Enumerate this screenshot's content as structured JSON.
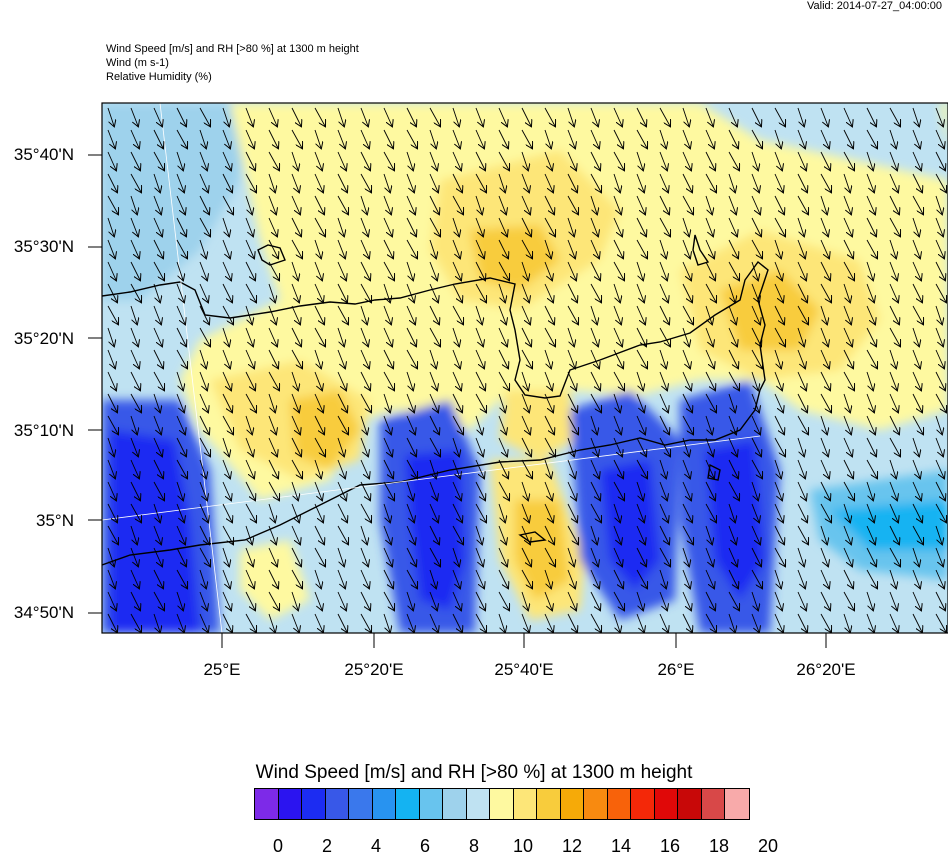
{
  "valid_time": "Valid: 2014-07-27_04:00:00",
  "header": {
    "line1": "Wind Speed [m/s] and RH [>80 %] at 1300 m height",
    "line2": "Wind   (m s-1)",
    "line3": "Relative Humidity   (%)"
  },
  "axes": {
    "y_ticks": [
      "35°40'N",
      "35°30'N",
      "35°20'N",
      "35°10'N",
      "35°N",
      "34°50'N"
    ],
    "x_ticks": [
      "25°E",
      "25°20'E",
      "25°40'E",
      "26°E",
      "26°20'E"
    ]
  },
  "legend": {
    "title": "Wind Speed [m/s] and RH [>80 %] at 1300 m height",
    "labels": [
      "0",
      "2",
      "4",
      "6",
      "8",
      "10",
      "12",
      "14",
      "16",
      "18",
      "20"
    ],
    "colors": [
      "#7d2ae8",
      "#2b14f0",
      "#1c2cf2",
      "#3858e8",
      "#3a78ec",
      "#2893f0",
      "#14b3f2",
      "#68c4ee",
      "#9ed2ec",
      "#bfe2f2",
      "#fef9a0",
      "#fde678",
      "#f8cc3c",
      "#f6aa08",
      "#f88a10",
      "#f8620a",
      "#f42808",
      "#e00808",
      "#c80808",
      "#d84848",
      "#f8aaaa"
    ]
  },
  "map_colors": {
    "calm_blue": "#2b14f0",
    "light_blue": "#bfe2f2",
    "yellow": "#fef9a0",
    "orange": "#f8cc3c",
    "coast": "#000000"
  }
}
